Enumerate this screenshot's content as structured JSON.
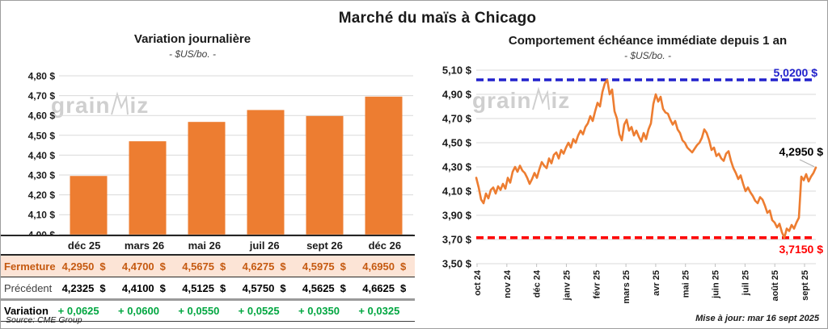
{
  "page": {
    "title": "Marché du maïs à Chicago",
    "source": "Source: CME Group",
    "updated": "Mise à jour: mar 16 sept 2025",
    "watermark_pre": "grain",
    "watermark_post": "iz"
  },
  "colors": {
    "accent_orange": "#ED7D31",
    "fermeture_text": "#C55A11",
    "fermeture_bg": "#FCE4D6",
    "variation_green": "#00A640",
    "max_blue": "#2222CC",
    "min_red": "#FF0000",
    "grid_gray": "#D9D9D9"
  },
  "chart_data": [
    {
      "id": "variation-journaliere",
      "type": "bar",
      "title": "Variation journalière",
      "subtitle": "- $US/bo. -",
      "categories": [
        "déc 25",
        "mars 26",
        "mai 26",
        "juil 26",
        "sept 26",
        "déc 26"
      ],
      "values": [
        4.295,
        4.47,
        4.5675,
        4.6275,
        4.5975,
        4.695
      ],
      "ylabel": "$US/bo.",
      "ylim": [
        4.0,
        4.8
      ],
      "ytick_labels": [
        "4,80 $",
        "4,70 $",
        "4,60 $",
        "4,50 $",
        "4,40 $",
        "4,30 $",
        "4,20 $",
        "4,10 $",
        "4,00 $"
      ],
      "grid": true,
      "bar_color": "#ED7D31"
    },
    {
      "id": "echeance-immediate",
      "type": "line",
      "title": "Comportement échéance immédiate depuis 1 an",
      "subtitle": "- $US/bo. -",
      "x_categories": [
        "oct 24",
        "nov 24",
        "déc 24",
        "janv 25",
        "févr 25",
        "mars 25",
        "avr 25",
        "mai 25",
        "juin 25",
        "juil 25",
        "août 25",
        "sept 25"
      ],
      "ylim": [
        3.5,
        5.1
      ],
      "ytick_labels": [
        "5,10 $",
        "4,90 $",
        "4,70 $",
        "4,50 $",
        "4,30 $",
        "4,10 $",
        "3,90 $",
        "3,70 $",
        "3,50 $"
      ],
      "grid": true,
      "line_color": "#ED7D31",
      "max_line": {
        "value": 5.02,
        "label": "5,0200 $",
        "color": "#2222CC"
      },
      "min_line": {
        "value": 3.715,
        "label": "3,7150 $",
        "color": "#FF0000"
      },
      "last_point": {
        "value": 4.295,
        "label": "4,2950 $",
        "color": "#000000"
      },
      "values": [
        4.21,
        4.13,
        4.03,
        4.0,
        4.08,
        4.04,
        4.11,
        4.13,
        4.08,
        4.14,
        4.11,
        4.16,
        4.12,
        4.21,
        4.17,
        4.26,
        4.3,
        4.26,
        4.31,
        4.27,
        4.25,
        4.21,
        4.16,
        4.2,
        4.25,
        4.21,
        4.28,
        4.34,
        4.31,
        4.29,
        4.37,
        4.33,
        4.4,
        4.42,
        4.37,
        4.44,
        4.41,
        4.46,
        4.5,
        4.46,
        4.53,
        4.5,
        4.56,
        4.6,
        4.57,
        4.63,
        4.66,
        4.72,
        4.68,
        4.76,
        4.83,
        4.8,
        4.92,
        4.99,
        5.02,
        4.9,
        4.94,
        4.76,
        4.7,
        4.57,
        4.52,
        4.65,
        4.69,
        4.6,
        4.63,
        4.56,
        4.6,
        4.55,
        4.51,
        4.58,
        4.53,
        4.61,
        4.66,
        4.82,
        4.9,
        4.84,
        4.88,
        4.78,
        4.75,
        4.74,
        4.69,
        4.65,
        4.68,
        4.61,
        4.58,
        4.52,
        4.5,
        4.46,
        4.44,
        4.42,
        4.45,
        4.48,
        4.5,
        4.54,
        4.61,
        4.58,
        4.52,
        4.44,
        4.46,
        4.39,
        4.41,
        4.37,
        4.35,
        4.41,
        4.43,
        4.35,
        4.29,
        4.25,
        4.2,
        4.23,
        4.16,
        4.1,
        4.13,
        4.09,
        4.06,
        4.02,
        4.0,
        4.05,
        4.03,
        3.98,
        3.92,
        3.94,
        3.86,
        3.84,
        3.8,
        3.83,
        3.76,
        3.715,
        3.79,
        3.77,
        3.82,
        3.79,
        3.84,
        3.88,
        4.22,
        4.19,
        4.24,
        4.18,
        4.22,
        4.25,
        4.295
      ]
    }
  ],
  "table": {
    "headers": [
      "déc 25",
      "mars 26",
      "mai 26",
      "juil 26",
      "sept 26",
      "déc 26"
    ],
    "rows": [
      {
        "label": "Fermeture",
        "values": [
          "4,2950",
          "4,4700",
          "4,5675",
          "4,6275",
          "4,5975",
          "4,6950"
        ],
        "currency": "$",
        "style": "ferm"
      },
      {
        "label": "Précédent",
        "values": [
          "4,2325",
          "4,4100",
          "4,5125",
          "4,5750",
          "4,5625",
          "4,6625"
        ],
        "currency": "$",
        "style": "prec"
      },
      {
        "label": "Variation",
        "values": [
          "+ 0,0625",
          "+ 0,0600",
          "+ 0,0550",
          "+ 0,0525",
          "+ 0,0350",
          "+ 0,0325"
        ],
        "currency": "",
        "style": "vari"
      }
    ]
  }
}
